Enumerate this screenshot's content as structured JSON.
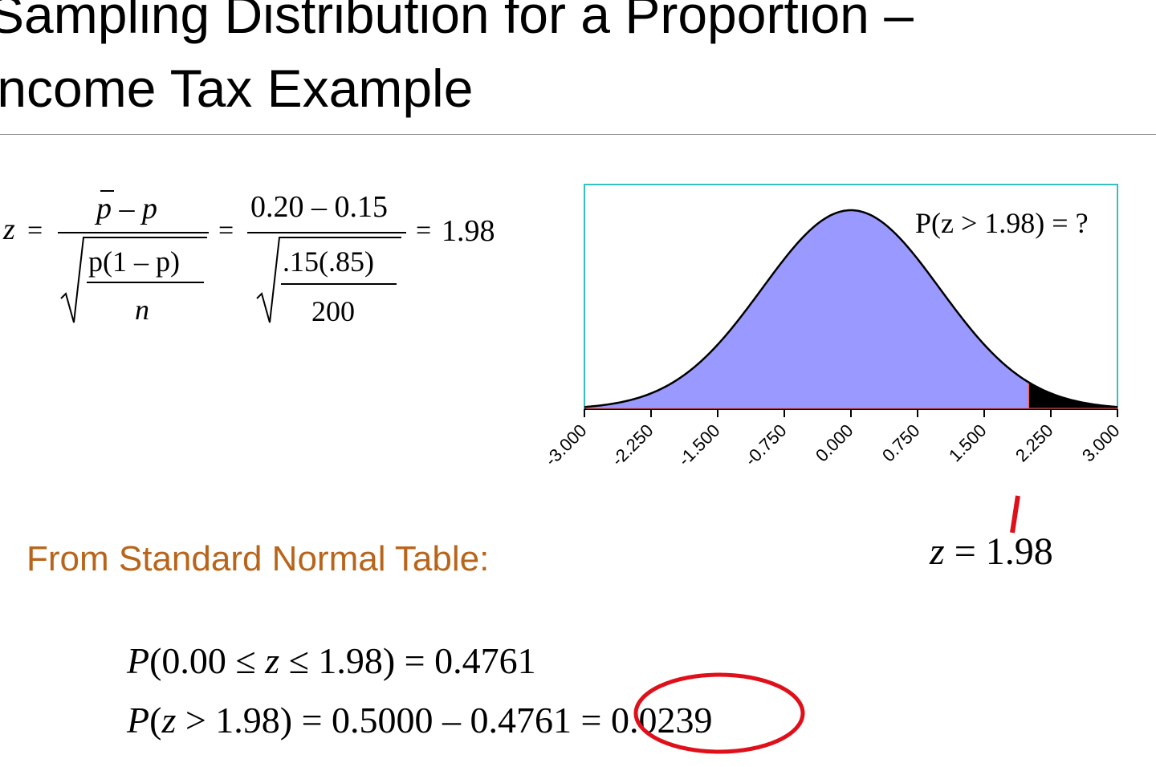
{
  "slide": {
    "title_line1": "Sampling Distribution for a Proportion –",
    "title_line2": "Income Tax Example"
  },
  "formula": {
    "lhs": "z",
    "num1": "p – p",
    "frac_num": "p(1 – p)",
    "frac_den": "n",
    "num2": "0.20 – 0.15",
    "frac2_num": ".15(.85)",
    "frac2_den": "200",
    "result": "1.98"
  },
  "table": {
    "label": "From Standard Normal Table:",
    "eq1": "P(0.00 ≤ z ≤ 1.98) = 0.4761",
    "eq2_prefix": "P(z > 1.98) = 0.5000 – 0.4761 = ",
    "eq2_answer": "0.0239"
  },
  "chart_data": {
    "type": "area",
    "distribution": "standard normal",
    "mean": 0,
    "sd": 1,
    "xlim": [
      -3.0,
      3.0
    ],
    "ticks": [
      "-3.000",
      "-2.250",
      "-1.500",
      "-0.750",
      "0.000",
      "0.750",
      "1.500",
      "2.250",
      "3.000"
    ],
    "tick_values": [
      -3.0,
      -2.25,
      -1.5,
      -0.75,
      0.0,
      0.75,
      1.5,
      2.25,
      3.0
    ],
    "shaded_from": 2.0,
    "annotation": "P(z > 1.98) = ?",
    "marker_label": "z = 1.98",
    "marker_value": 1.98,
    "colors": {
      "body": "#9999ff",
      "tail": "#000000",
      "border": "#36c0c0",
      "marker": "#e0101a",
      "circle": "#e0101a"
    }
  }
}
